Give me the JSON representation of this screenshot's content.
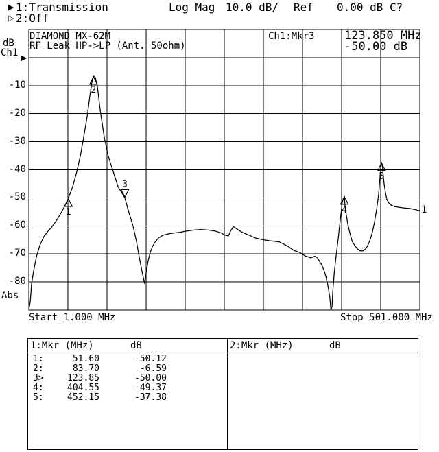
{
  "header": {
    "ch1_prefix": "1:Transmission",
    "format": "Log Mag",
    "scale": "10.0 dB/",
    "ref_label": "Ref",
    "ref_value": "0.00 dB",
    "cal_status": "C?",
    "ch2_prefix": "2:Off"
  },
  "axis": {
    "y_unit": "dB",
    "channel": "Ch1",
    "abs_label": "Abs",
    "y_labels": [
      "-10",
      "-20",
      "-30",
      "-40",
      "-50",
      "-60",
      "-70",
      "-80"
    ],
    "x_start": "Start 1.000 MHz",
    "x_stop": "Stop 501.000 MHz"
  },
  "graph": {
    "title_line1": "DIAMOND MX-62M",
    "title_line2": "RF Leak HP->LP (Ant. 50ohm)",
    "readout_channel": "Ch1:Mkr3",
    "readout_freq": "123.850 MHz",
    "readout_level": "-50.00 dB",
    "trace_label": "1"
  },
  "chart_data": {
    "type": "line",
    "title": "DIAMOND MX-62M RF Leak HP->LP (Ant. 50ohm)",
    "x_axis": {
      "label_start": "Start 1.000 MHz",
      "label_stop": "Stop 501.000 MHz",
      "range_mhz": [
        1,
        501
      ],
      "mhz_per_div": 50
    },
    "y_axis": {
      "unit": "dB",
      "range_db": [
        -90,
        10
      ],
      "db_per_div": 10,
      "ref_db": 0.0,
      "tick_labels": [
        "-10",
        "-20",
        "-30",
        "-40",
        "-50",
        "-60",
        "-70",
        "-80"
      ]
    },
    "grid": {
      "cols": 10,
      "rows": 10,
      "on": true
    },
    "series": [
      {
        "name": "Ch1 Transmission Log Mag",
        "points_mhz_db": [
          [
            1,
            -90
          ],
          [
            2.8,
            -87
          ],
          [
            4.5,
            -80.7
          ],
          [
            7.1,
            -76.1
          ],
          [
            10.6,
            -71.2
          ],
          [
            15,
            -67
          ],
          [
            20.3,
            -63.8
          ],
          [
            25.6,
            -61.9
          ],
          [
            30.8,
            -60.2
          ],
          [
            36.1,
            -58.2
          ],
          [
            41.4,
            -55.8
          ],
          [
            46.6,
            -53.1
          ],
          [
            51.6,
            -50.1
          ],
          [
            57.1,
            -46
          ],
          [
            62.4,
            -40.6
          ],
          [
            66.8,
            -35.2
          ],
          [
            71.2,
            -28.4
          ],
          [
            75.6,
            -21.1
          ],
          [
            79.1,
            -13.7
          ],
          [
            81.7,
            -8.8
          ],
          [
            83.7,
            -6.6
          ],
          [
            86.1,
            -7.1
          ],
          [
            88.7,
            -10.3
          ],
          [
            92.2,
            -18.6
          ],
          [
            97.5,
            -28.4
          ],
          [
            102.7,
            -35.2
          ],
          [
            108.9,
            -40.6
          ],
          [
            115,
            -46
          ],
          [
            123.85,
            -50
          ],
          [
            129.1,
            -55.3
          ],
          [
            134.4,
            -60.2
          ],
          [
            138.7,
            -65.6
          ],
          [
            142.2,
            -71.2
          ],
          [
            145.8,
            -76.3
          ],
          [
            149,
            -80.5
          ],
          [
            151,
            -76.8
          ],
          [
            153.6,
            -72.4
          ],
          [
            156.3,
            -69.5
          ],
          [
            158.9,
            -67.5
          ],
          [
            162.4,
            -65.8
          ],
          [
            166.8,
            -64.3
          ],
          [
            172.1,
            -63.4
          ],
          [
            178.2,
            -62.9
          ],
          [
            185.3,
            -62.6
          ],
          [
            194,
            -62.3
          ],
          [
            202.8,
            -61.8
          ],
          [
            212.4,
            -61.5
          ],
          [
            221.2,
            -61.3
          ],
          [
            230,
            -61.5
          ],
          [
            238.8,
            -61.8
          ],
          [
            246.7,
            -62.5
          ],
          [
            251.9,
            -63.3
          ],
          [
            256.3,
            -63.6
          ],
          [
            258.9,
            -61.9
          ],
          [
            262.5,
            -60.3
          ],
          [
            265.1,
            -60.7
          ],
          [
            269.5,
            -61.6
          ],
          [
            275.6,
            -62.5
          ],
          [
            282.6,
            -63.3
          ],
          [
            290.5,
            -64.3
          ],
          [
            299.3,
            -64.9
          ],
          [
            308.9,
            -65.3
          ],
          [
            321.2,
            -65.7
          ],
          [
            332.6,
            -67.3
          ],
          [
            339.6,
            -68.7
          ],
          [
            347.5,
            -69.5
          ],
          [
            354.5,
            -70.7
          ],
          [
            361.6,
            -71.4
          ],
          [
            366.8,
            -70.8
          ],
          [
            369.5,
            -71.2
          ],
          [
            372.1,
            -72.4
          ],
          [
            375.6,
            -73.9
          ],
          [
            378.2,
            -75.6
          ],
          [
            380.9,
            -78
          ],
          [
            383.5,
            -81.4
          ],
          [
            385.9,
            -85.4
          ],
          [
            387.3,
            -89.9
          ],
          [
            388.8,
            -88.8
          ],
          [
            389.6,
            -83.9
          ],
          [
            391.7,
            -76.6
          ],
          [
            394,
            -70.7
          ],
          [
            396.4,
            -65.1
          ],
          [
            398.4,
            -60.2
          ],
          [
            400.4,
            -55.3
          ],
          [
            401.9,
            -51.6
          ],
          [
            404.55,
            -49.37
          ],
          [
            405.4,
            -52.8
          ],
          [
            407.2,
            -56.5
          ],
          [
            409.2,
            -59.7
          ],
          [
            411.6,
            -62.6
          ],
          [
            414.5,
            -65.5
          ],
          [
            417.7,
            -67
          ],
          [
            421.2,
            -68.2
          ],
          [
            424.7,
            -68.9
          ],
          [
            428.5,
            -68.9
          ],
          [
            431.8,
            -68.2
          ],
          [
            434.4,
            -67
          ],
          [
            437.3,
            -65.1
          ],
          [
            440.5,
            -62.1
          ],
          [
            443.2,
            -58.5
          ],
          [
            446.1,
            -53.6
          ],
          [
            448.4,
            -48.7
          ],
          [
            449.8,
            -43.8
          ],
          [
            451.1,
            -39.9
          ],
          [
            452.15,
            -37.38
          ],
          [
            453.3,
            -38.7
          ],
          [
            454.1,
            -41.4
          ],
          [
            455.4,
            -45
          ],
          [
            457.2,
            -48.4
          ],
          [
            458.9,
            -50.6
          ],
          [
            461.6,
            -51.9
          ],
          [
            464.2,
            -52.6
          ],
          [
            468.6,
            -53.1
          ],
          [
            474.7,
            -53.4
          ],
          [
            480,
            -53.6
          ],
          [
            487.9,
            -53.8
          ],
          [
            494,
            -54.1
          ],
          [
            499.3,
            -54.5
          ],
          [
            501,
            -54.6
          ]
        ]
      }
    ],
    "markers": [
      {
        "n": "1",
        "mhz": 51.6,
        "db": -50.12,
        "style": "below"
      },
      {
        "n": "2",
        "mhz": 83.7,
        "db": -6.59,
        "style": "below"
      },
      {
        "n": "3",
        "mhz": 123.85,
        "db": -50.0,
        "style": "above"
      },
      {
        "n": "4",
        "mhz": 404.55,
        "db": -49.37,
        "style": "below"
      },
      {
        "n": "5",
        "mhz": 452.15,
        "db": -37.38,
        "style": "below"
      }
    ],
    "legend_position": "none"
  },
  "marker_table": {
    "left": {
      "header_label": "1:Mkr (MHz)",
      "header_unit": "dB",
      "rows": [
        {
          "label": "1:",
          "freq": "51.60",
          "db": "-50.12"
        },
        {
          "label": "2:",
          "freq": "83.70",
          "db": "-6.59"
        },
        {
          "label": "3>",
          "freq": "123.85",
          "db": "-50.00"
        },
        {
          "label": "4:",
          "freq": "404.55",
          "db": "-49.37"
        },
        {
          "label": "5:",
          "freq": "452.15",
          "db": "-37.38"
        }
      ]
    },
    "right": {
      "header_label": "2:Mkr (MHz)",
      "header_unit": "dB",
      "rows": []
    }
  }
}
